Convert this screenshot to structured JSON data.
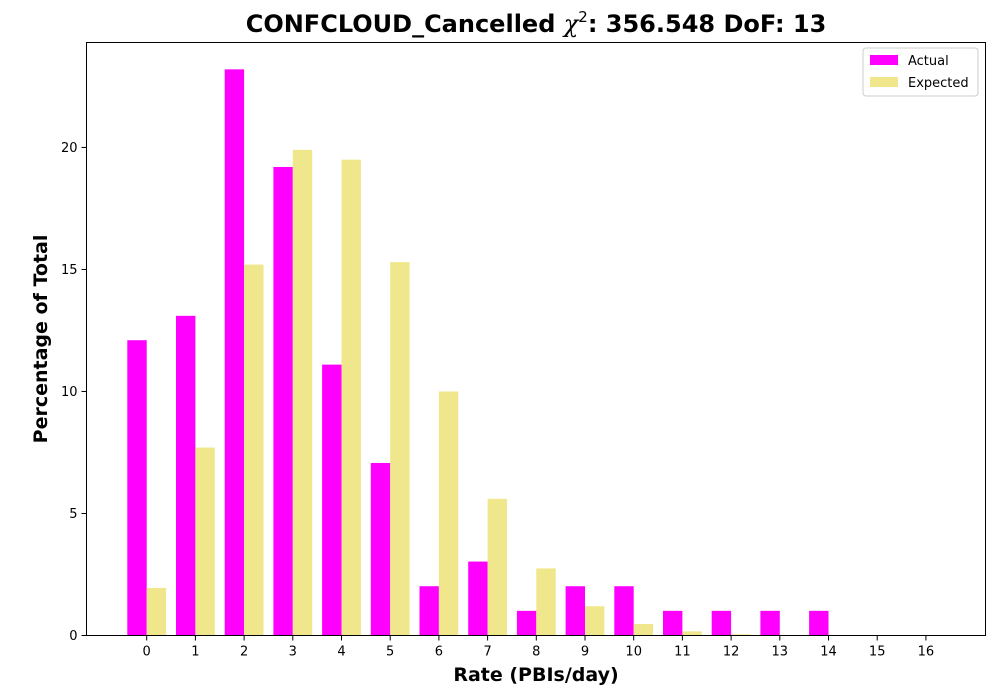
{
  "chart_data": {
    "type": "bar",
    "title": "CONFCLOUD_Cancelled χ²: 356.548 DoF: 13",
    "title_parts": {
      "prefix": "CONFCLOUD_Cancelled ",
      "chi_symbol": "χ",
      "chi_superscript": "2",
      "suffix": ": 356.548 DoF: 13"
    },
    "xlabel": "Rate (PBIs/day)",
    "ylabel": "Percentage of Total",
    "categories": [
      "0",
      "1",
      "2",
      "3",
      "4",
      "5",
      "6",
      "7",
      "8",
      "9",
      "10",
      "11",
      "12",
      "13",
      "14",
      "15",
      "16"
    ],
    "ylim": [
      0,
      24.3
    ],
    "yticks": [
      "0",
      "5",
      "10",
      "15",
      "20"
    ],
    "grid": false,
    "legend_position": "top-right",
    "series": [
      {
        "name": "Actual",
        "color": "#ff00ff",
        "values": [
          12.1,
          13.1,
          23.2,
          19.2,
          11.1,
          7.07,
          2.02,
          3.03,
          1.01,
          2.02,
          2.02,
          1.01,
          1.01,
          1.01,
          1.01,
          0,
          0
        ]
      },
      {
        "name": "Expected",
        "color": "#f0e68c",
        "values": [
          1.95,
          7.7,
          15.2,
          19.9,
          19.5,
          15.3,
          10.0,
          5.6,
          2.75,
          1.2,
          0.47,
          0.17,
          0.05,
          0.02,
          0,
          0,
          0
        ]
      }
    ]
  }
}
